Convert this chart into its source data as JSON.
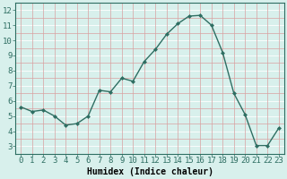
{
  "x": [
    0,
    1,
    2,
    3,
    4,
    5,
    6,
    7,
    8,
    9,
    10,
    11,
    12,
    13,
    14,
    15,
    16,
    17,
    18,
    19,
    20,
    21,
    22,
    23
  ],
  "y": [
    5.6,
    5.3,
    5.4,
    5.0,
    4.4,
    4.5,
    5.0,
    6.7,
    6.6,
    7.5,
    7.3,
    8.6,
    9.4,
    10.4,
    11.1,
    11.6,
    11.65,
    11.0,
    9.2,
    6.5,
    5.1,
    3.05,
    3.05,
    4.2
  ],
  "line_color": "#2e6e62",
  "marker": "D",
  "marker_size": 2,
  "linewidth": 1.0,
  "background_color": "#d8f0ec",
  "grid_h_color": "#d8a0a0",
  "grid_v_color": "#d8a0a0",
  "grid_white_color": "#ffffff",
  "xlabel": "Humidex (Indice chaleur)",
  "xlabel_fontsize": 7,
  "ylabel_ticks": [
    3,
    4,
    5,
    6,
    7,
    8,
    9,
    10,
    11,
    12
  ],
  "xlim": [
    -0.5,
    23.5
  ],
  "ylim": [
    2.5,
    12.5
  ],
  "tick_fontsize": 6.5
}
